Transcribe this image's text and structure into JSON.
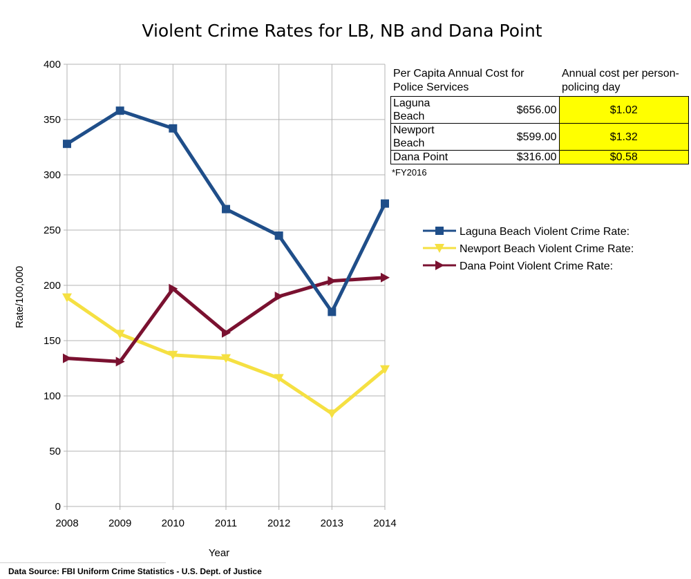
{
  "chart_data": {
    "type": "line",
    "title": "Violent Crime Rates for LB, NB and Dana Point",
    "xlabel": "Year",
    "ylabel": "Rate/100,000",
    "categories": [
      "2008",
      "2009",
      "2010",
      "2011",
      "2012",
      "2013",
      "2014"
    ],
    "ylim": [
      0,
      400
    ],
    "yticks": [
      "0",
      "50",
      "100",
      "150",
      "200",
      "250",
      "300",
      "350",
      "400"
    ],
    "grid": true,
    "legend_position": "right",
    "series": [
      {
        "name": "Laguna Beach Violent Crime Rate:",
        "marker": "square",
        "color": "#1f4e89",
        "values": [
          328,
          358,
          342,
          269,
          245,
          176,
          274
        ]
      },
      {
        "name": "Newport Beach Violent Crime Rate:",
        "marker": "triangle-down",
        "color": "#f5e042",
        "values": [
          189,
          156,
          137,
          134,
          116,
          84,
          124
        ]
      },
      {
        "name": "Dana Point Violent Crime Rate:",
        "marker": "triangle-right",
        "color": "#7a1130",
        "values": [
          134,
          131,
          197,
          157,
          190,
          204,
          207
        ]
      }
    ]
  },
  "cost_table": {
    "header_left": "Per Capita Annual Cost for Police Services",
    "header_right": "Annual cost per person-policing day",
    "rows": [
      {
        "city": "Laguna Beach",
        "annual": "$656.00",
        "daily": "$1.02"
      },
      {
        "city": "Newport Beach",
        "annual": "$599.00",
        "daily": "$1.32"
      },
      {
        "city": "Dana Point",
        "annual": "$316.00",
        "daily": "$0.58"
      }
    ],
    "highlight_color": "#ffff00",
    "note": "*FY2016"
  },
  "source": "Data Source:  FBI Uniform Crime Statistics - U.S. Dept. of Justice"
}
